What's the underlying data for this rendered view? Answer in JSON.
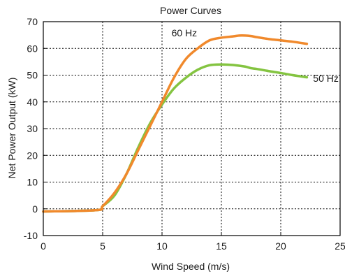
{
  "chart_data": {
    "type": "line",
    "title": "Power Curves",
    "xlabel": "Wind Speed (m/s)",
    "ylabel": "Net Power Output (kW)",
    "xlim": [
      0,
      25
    ],
    "ylim": [
      -10,
      70
    ],
    "xticks": [
      0,
      5,
      10,
      15,
      20,
      25
    ],
    "yticks": [
      -10,
      0,
      10,
      20,
      30,
      40,
      50,
      60,
      70
    ],
    "grid": true,
    "series": [
      {
        "name": "60 Hz",
        "color": "#f0892c",
        "x": [
          0,
          4.5,
          5,
          6,
          7,
          8,
          9,
          10,
          11,
          12,
          13,
          14,
          15,
          16,
          16.5,
          17,
          17.5,
          18,
          19,
          20,
          21,
          22.2
        ],
        "y": [
          -1,
          -0.5,
          1,
          6,
          13,
          22,
          31,
          40,
          49,
          56,
          60,
          63,
          64,
          64.5,
          64.8,
          64.8,
          64.6,
          64.2,
          63.5,
          63,
          62.5,
          61.7
        ]
      },
      {
        "name": "50 Hz",
        "color": "#84c441",
        "x": [
          0,
          4.5,
          5,
          6,
          7,
          8,
          9,
          10,
          11,
          12,
          13,
          14,
          15,
          16,
          17,
          17.5,
          18,
          19,
          20,
          21,
          22.2
        ],
        "y": [
          -1,
          -0.5,
          1,
          5,
          13,
          23,
          32,
          39,
          45,
          49,
          52,
          53.7,
          54,
          53.8,
          53.2,
          52.6,
          52.3,
          51.5,
          50.8,
          50,
          49.2
        ]
      }
    ]
  }
}
